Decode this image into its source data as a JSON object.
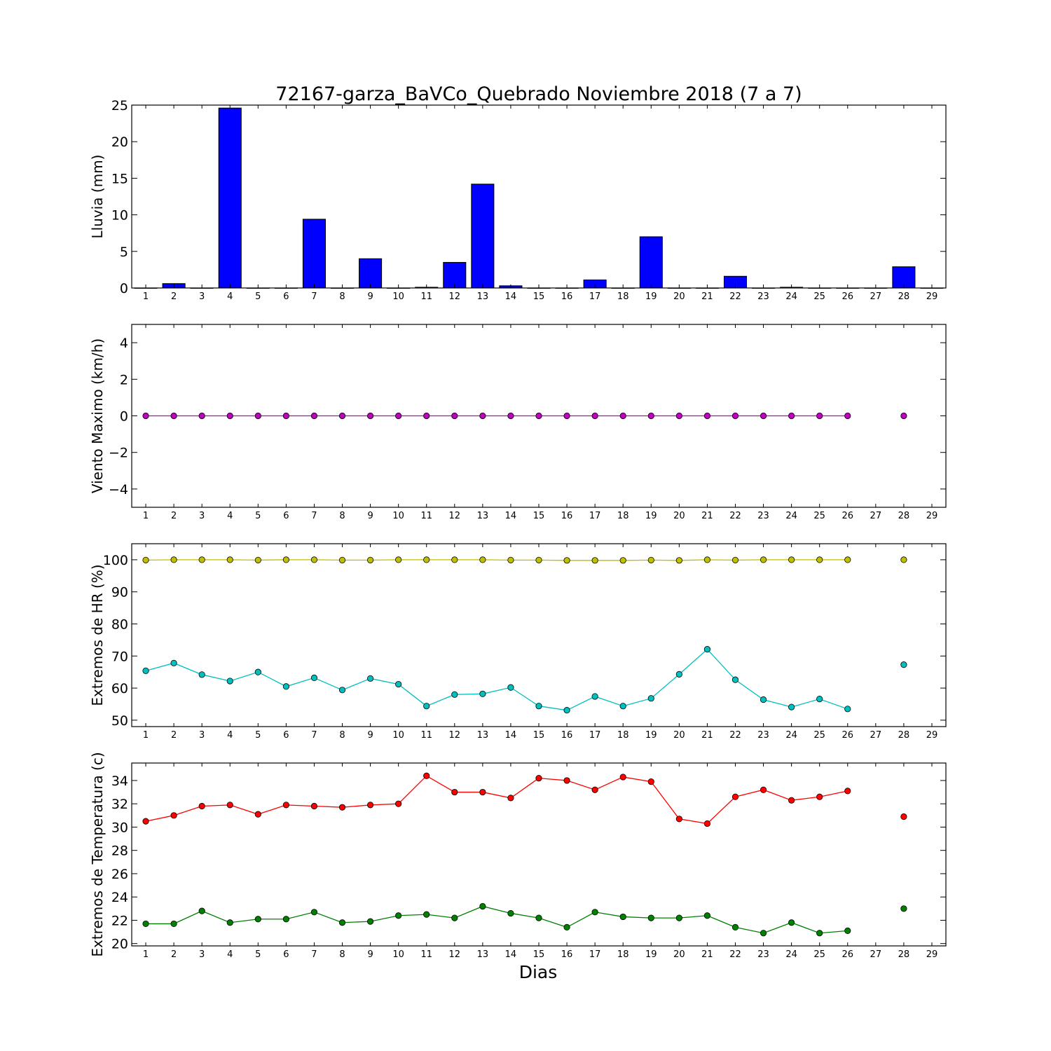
{
  "figure_title": "72167-garza_BaVCo_Quebrado Noviembre 2018  (7 a 7)",
  "xlabel": "Dias",
  "chart_data": [
    {
      "type": "bar",
      "ylabel": "Lluvia (mm)",
      "ylim": [
        0,
        25
      ],
      "yticks": [
        0,
        5,
        10,
        15,
        20,
        25
      ],
      "xlim": [
        0.5,
        29.5
      ],
      "xticks": [
        1,
        2,
        3,
        4,
        5,
        6,
        7,
        8,
        9,
        10,
        11,
        12,
        13,
        14,
        15,
        16,
        17,
        18,
        19,
        20,
        21,
        22,
        23,
        24,
        25,
        26,
        27,
        28,
        29
      ],
      "x": [
        1,
        2,
        3,
        4,
        5,
        6,
        7,
        8,
        9,
        10,
        11,
        12,
        13,
        14,
        15,
        16,
        17,
        18,
        19,
        20,
        21,
        22,
        23,
        24,
        25,
        26,
        27,
        28,
        29
      ],
      "values": [
        0,
        0.6,
        0,
        24.6,
        0,
        0,
        9.4,
        0,
        4.0,
        0,
        0.1,
        3.5,
        14.2,
        0.3,
        0,
        0,
        1.1,
        0,
        7.0,
        0,
        0,
        1.6,
        0,
        0.1,
        0,
        0,
        0,
        2.9,
        0
      ],
      "color": "#0000ff"
    },
    {
      "type": "line",
      "ylabel": "Viento Maximo (km/h)",
      "ylim": [
        -5,
        5
      ],
      "yticks": [
        -4,
        -2,
        0,
        2,
        4
      ],
      "xlim": [
        0.5,
        29.5
      ],
      "xticks": [
        1,
        2,
        3,
        4,
        5,
        6,
        7,
        8,
        9,
        10,
        11,
        12,
        13,
        14,
        15,
        16,
        17,
        18,
        19,
        20,
        21,
        22,
        23,
        24,
        25,
        26,
        27,
        28,
        29
      ],
      "x": [
        1,
        2,
        3,
        4,
        5,
        6,
        7,
        8,
        9,
        10,
        11,
        12,
        13,
        14,
        15,
        16,
        17,
        18,
        19,
        20,
        21,
        22,
        23,
        24,
        25,
        26,
        27,
        28,
        29
      ],
      "series": [
        {
          "values": [
            0,
            0,
            0,
            0,
            0,
            0,
            0,
            0,
            0,
            0,
            0,
            0,
            0,
            0,
            0,
            0,
            0,
            0,
            0,
            0,
            0,
            0,
            0,
            0,
            0,
            0,
            null,
            0,
            null
          ],
          "color": "#bf00bf"
        }
      ]
    },
    {
      "type": "line",
      "ylabel": "Extremos de HR (%)",
      "ylim": [
        48,
        105
      ],
      "yticks": [
        50,
        60,
        70,
        80,
        90,
        100
      ],
      "xlim": [
        0.5,
        29.5
      ],
      "xticks": [
        1,
        2,
        3,
        4,
        5,
        6,
        7,
        8,
        9,
        10,
        11,
        12,
        13,
        14,
        15,
        16,
        17,
        18,
        19,
        20,
        21,
        22,
        23,
        24,
        25,
        26,
        27,
        28,
        29
      ],
      "x": [
        1,
        2,
        3,
        4,
        5,
        6,
        7,
        8,
        9,
        10,
        11,
        12,
        13,
        14,
        15,
        16,
        17,
        18,
        19,
        20,
        21,
        22,
        23,
        24,
        25,
        26,
        27,
        28,
        29
      ],
      "series": [
        {
          "values": [
            99.9,
            100,
            100,
            100,
            99.9,
            100,
            100,
            99.9,
            99.9,
            100,
            100,
            100,
            100,
            99.9,
            99.9,
            99.8,
            99.8,
            99.8,
            99.9,
            99.8,
            100,
            99.9,
            100,
            100,
            100,
            100,
            null,
            100,
            null
          ],
          "color": "#bfbf00"
        },
        {
          "values": [
            65.4,
            67.8,
            64.2,
            62.2,
            65.0,
            60.5,
            63.2,
            59.4,
            63.0,
            61.2,
            54.4,
            58.0,
            58.2,
            60.2,
            54.4,
            53.1,
            57.4,
            54.4,
            56.8,
            64.3,
            72.1,
            62.6,
            56.4,
            54.1,
            56.6,
            53.5,
            null,
            67.3,
            null
          ],
          "color": "#00bfbf"
        }
      ]
    },
    {
      "type": "line",
      "ylabel": "Extremos de Temperatura (c)",
      "ylim": [
        19.8,
        35.5
      ],
      "yticks": [
        20,
        22,
        24,
        26,
        28,
        30,
        32,
        34
      ],
      "xlim": [
        0.5,
        29.5
      ],
      "xticks": [
        1,
        2,
        3,
        4,
        5,
        6,
        7,
        8,
        9,
        10,
        11,
        12,
        13,
        14,
        15,
        16,
        17,
        18,
        19,
        20,
        21,
        22,
        23,
        24,
        25,
        26,
        27,
        28,
        29
      ],
      "x": [
        1,
        2,
        3,
        4,
        5,
        6,
        7,
        8,
        9,
        10,
        11,
        12,
        13,
        14,
        15,
        16,
        17,
        18,
        19,
        20,
        21,
        22,
        23,
        24,
        25,
        26,
        27,
        28,
        29
      ],
      "series": [
        {
          "values": [
            30.5,
            31.0,
            31.8,
            31.9,
            31.1,
            31.9,
            31.8,
            31.7,
            31.9,
            32.0,
            34.4,
            33.0,
            33.0,
            32.5,
            34.2,
            34.0,
            33.2,
            34.3,
            33.9,
            30.7,
            30.3,
            32.6,
            33.2,
            32.3,
            32.6,
            33.1,
            null,
            30.9,
            null
          ],
          "color": "#ff0000"
        },
        {
          "values": [
            21.7,
            21.7,
            22.8,
            21.8,
            22.1,
            22.1,
            22.7,
            21.8,
            21.9,
            22.4,
            22.5,
            22.2,
            23.2,
            22.6,
            22.2,
            21.4,
            22.7,
            22.3,
            22.2,
            22.2,
            22.4,
            21.4,
            20.9,
            21.8,
            20.9,
            21.1,
            null,
            23.0,
            null
          ],
          "color": "#008000"
        }
      ]
    }
  ]
}
